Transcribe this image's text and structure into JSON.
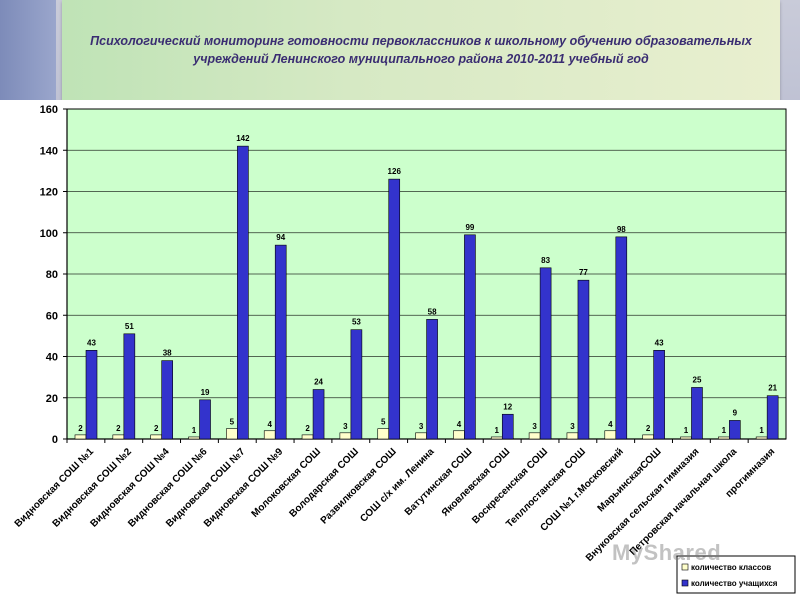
{
  "slide": {
    "title": "Психологический мониторинг готовности первоклассников к школьному обучению образовательных учреждений Ленинского муниципального района 2010-2011 учебный год",
    "watermark": "MyShared"
  },
  "colors": {
    "plot_bg": "#ccffcc",
    "classes_bar": "#ffffcc",
    "students_bar": "#3333cc",
    "title_text": "#3a2d72"
  },
  "chart_data": {
    "type": "bar",
    "title": "",
    "xlabel": "",
    "ylabel": "",
    "ylim": [
      0,
      160
    ],
    "yticks": [
      0,
      20,
      40,
      60,
      80,
      100,
      120,
      140,
      160
    ],
    "grid": true,
    "legend_position": "bottom-right",
    "categories": [
      "Видновская СОШ №1",
      "Видновская СОШ №2",
      "Видновская СОШ №4",
      "Видновская СОШ №6",
      "Видновская СОШ №7",
      "Видновская СОШ №9",
      "Молоковская СОШ",
      "Володарская СОШ",
      "Развилковская СОШ",
      "СОШ с/х им. Ленина",
      "Ватутинская СОШ",
      "Яковлевская СОШ",
      "Воскресенская СОШ",
      "Тепллостанская СОШ",
      "СОШ №1 г.Московский",
      "МарьинскаяСОШ",
      "Внуковская сельская гимназия",
      "Петровская начальная школа",
      "прогимназия"
    ],
    "series": [
      {
        "name": "количество классов",
        "values": [
          2,
          2,
          2,
          1,
          5,
          4,
          2,
          3,
          5,
          3,
          4,
          1,
          3,
          3,
          4,
          2,
          1,
          1,
          1
        ]
      },
      {
        "name": "количество учащихся",
        "values": [
          43,
          51,
          38,
          19,
          142,
          94,
          24,
          53,
          126,
          58,
          99,
          12,
          83,
          77,
          98,
          43,
          25,
          9,
          21
        ]
      }
    ]
  }
}
